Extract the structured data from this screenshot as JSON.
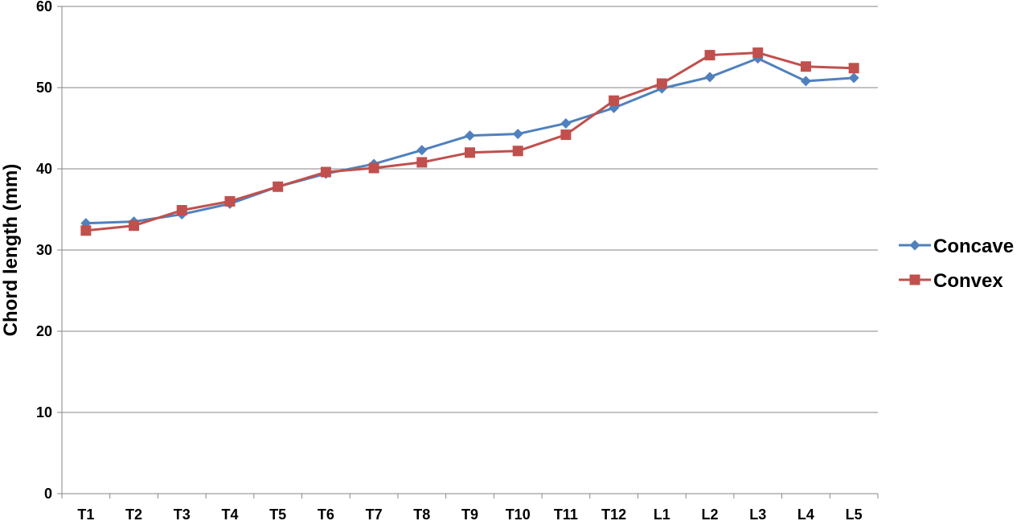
{
  "chart_data": {
    "type": "line",
    "title": "",
    "xlabel": "",
    "ylabel": "Chord length (mm)",
    "ylim": [
      0,
      60
    ],
    "yticks": [
      0,
      10,
      20,
      30,
      40,
      50,
      60
    ],
    "grid": true,
    "legend_position": "right",
    "categories": [
      "T1",
      "T2",
      "T3",
      "T4",
      "T5",
      "T6",
      "T7",
      "T8",
      "T9",
      "T10",
      "T11",
      "T12",
      "L1",
      "L2",
      "L3",
      "L4",
      "L5"
    ],
    "series": [
      {
        "name": "Concave",
        "color": "#4F81BD",
        "marker": "diamond",
        "values": [
          33.3,
          33.5,
          34.4,
          35.7,
          37.8,
          39.4,
          40.6,
          42.3,
          44.1,
          44.3,
          45.6,
          47.5,
          49.9,
          51.3,
          53.6,
          50.8,
          51.2
        ]
      },
      {
        "name": "Convex",
        "color": "#C0504D",
        "marker": "square",
        "values": [
          32.4,
          33.0,
          34.9,
          36.0,
          37.8,
          39.6,
          40.1,
          40.8,
          42.0,
          42.2,
          44.2,
          48.4,
          50.5,
          54.0,
          54.3,
          52.6,
          52.4
        ]
      }
    ]
  }
}
